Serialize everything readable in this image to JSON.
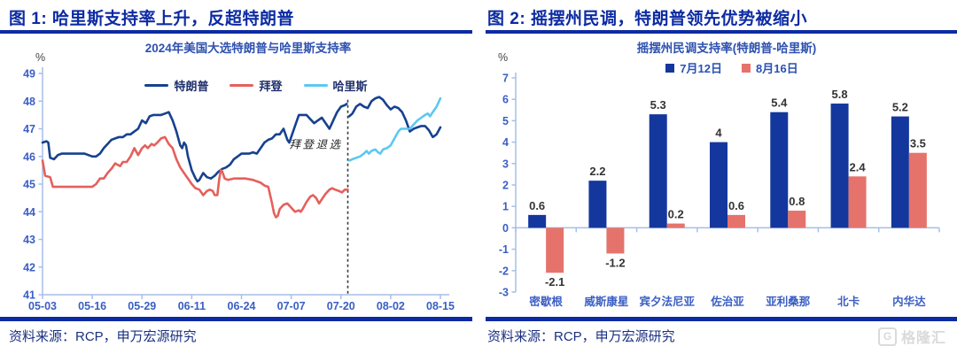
{
  "colors": {
    "accent_navy": "#0C2BA3",
    "axis_line": "#A6BEE8",
    "tick_text": "#3A5EC4",
    "value_label": "#333333",
    "annotation_text": "#222222",
    "event_line": "#3A3A3A",
    "source_text": "#1A3080",
    "watermark_gray": "#DADADA"
  },
  "panels": [
    {
      "figure_title": "图 1: 哈里斯支持率上升，反超特朗普",
      "source": "资料来源：RCP，申万宏源研究"
    },
    {
      "figure_title": "图 2: 摇摆州民调，特朗普领先优势被缩小",
      "source": "资料来源：RCP，申万宏源研究"
    }
  ],
  "watermark": {
    "logo_letter": "G",
    "text": "格隆汇"
  },
  "chart_data": [
    {
      "type": "line",
      "title": "2024年美国大选特朗普与哈里斯支持率",
      "unit_label": "%",
      "ylim": [
        41,
        49
      ],
      "ytick_step": 1,
      "x_range": [
        0,
        104
      ],
      "x_ticks": [
        {
          "day": 0,
          "label": "05-03"
        },
        {
          "day": 13,
          "label": "05-16"
        },
        {
          "day": 26,
          "label": "05-29"
        },
        {
          "day": 39,
          "label": "06-11"
        },
        {
          "day": 52,
          "label": "06-24"
        },
        {
          "day": 65,
          "label": "07-07"
        },
        {
          "day": 78,
          "label": "07-20"
        },
        {
          "day": 91,
          "label": "08-02"
        },
        {
          "day": 104,
          "label": "08-15"
        }
      ],
      "event_line": {
        "day": 79.8,
        "label": "拜登退选",
        "label_day": 78.4,
        "label_value": 46.3,
        "top_value": 48.05
      },
      "legend_position": "top-center",
      "grid": false,
      "series": [
        {
          "id": "trump",
          "name": "特朗普",
          "color": "#16418F",
          "points": [
            [
              0,
              46.5
            ],
            [
              1,
              46.55
            ],
            [
              1.5,
              46.5
            ],
            [
              2,
              45.95
            ],
            [
              3,
              45.9
            ],
            [
              4,
              46.05
            ],
            [
              5,
              46.1
            ],
            [
              8,
              46.1
            ],
            [
              11,
              46.1
            ],
            [
              12,
              46.05
            ],
            [
              13,
              46.0
            ],
            [
              14,
              46.0
            ],
            [
              15,
              46.1
            ],
            [
              16,
              46.3
            ],
            [
              17,
              46.45
            ],
            [
              18,
              46.6
            ],
            [
              19,
              46.65
            ],
            [
              20,
              46.7
            ],
            [
              21,
              46.7
            ],
            [
              22,
              46.8
            ],
            [
              23,
              46.8
            ],
            [
              24,
              46.9
            ],
            [
              25,
              47.0
            ],
            [
              26,
              47.3
            ],
            [
              27,
              47.2
            ],
            [
              28,
              47.45
            ],
            [
              29,
              47.5
            ],
            [
              30,
              47.5
            ],
            [
              31,
              47.5
            ],
            [
              32,
              47.55
            ],
            [
              33,
              47.6
            ],
            [
              34,
              47.3
            ],
            [
              35,
              46.9
            ],
            [
              36,
              46.4
            ],
            [
              36.5,
              46.3
            ],
            [
              37,
              46.5
            ],
            [
              37.5,
              46.4
            ],
            [
              38,
              46.0
            ],
            [
              39,
              45.5
            ],
            [
              40,
              45.2
            ],
            [
              40.5,
              45.1
            ],
            [
              41,
              45.15
            ],
            [
              42,
              45.4
            ],
            [
              43,
              45.25
            ],
            [
              44,
              45.2
            ],
            [
              45,
              45.3
            ],
            [
              46,
              45.45
            ],
            [
              47,
              45.55
            ],
            [
              48,
              45.6
            ],
            [
              49,
              45.7
            ],
            [
              50,
              45.9
            ],
            [
              51,
              46.0
            ],
            [
              52,
              46.1
            ],
            [
              54,
              46.1
            ],
            [
              55,
              46.15
            ],
            [
              56,
              46.1
            ],
            [
              57,
              46.3
            ],
            [
              58,
              46.5
            ],
            [
              59,
              46.6
            ],
            [
              60,
              46.65
            ],
            [
              61,
              46.8
            ],
            [
              62,
              46.8
            ],
            [
              62.5,
              46.9
            ],
            [
              63,
              47.0
            ],
            [
              64,
              46.6
            ],
            [
              64.5,
              46.5
            ],
            [
              65,
              46.7
            ],
            [
              66,
              47.1
            ],
            [
              67,
              47.5
            ],
            [
              68,
              47.5
            ],
            [
              69,
              47.5
            ],
            [
              70,
              47.35
            ],
            [
              71,
              47.2
            ],
            [
              72,
              47.3
            ],
            [
              73,
              47.4
            ],
            [
              74,
              47.2
            ],
            [
              75,
              47.0
            ],
            [
              76,
              47.3
            ],
            [
              77,
              47.6
            ],
            [
              78,
              47.8
            ],
            [
              79,
              47.85
            ],
            [
              79.5,
              47.9
            ],
            null,
            [
              80.2,
              47.45
            ],
            [
              81,
              47.55
            ],
            [
              82,
              47.8
            ],
            [
              83,
              47.9
            ],
            [
              84,
              47.8
            ],
            [
              85,
              47.75
            ],
            [
              86,
              48.0
            ],
            [
              87,
              48.1
            ],
            [
              88,
              48.15
            ],
            [
              89,
              48.05
            ],
            [
              90,
              47.85
            ],
            [
              91,
              47.7
            ],
            [
              92,
              47.8
            ],
            [
              93,
              47.75
            ],
            [
              94,
              47.6
            ],
            [
              95,
              47.3
            ],
            [
              96,
              46.9
            ],
            [
              97,
              47.0
            ],
            [
              98,
              47.05
            ],
            [
              99,
              47.1
            ],
            [
              100,
              47.1
            ],
            [
              101,
              46.95
            ],
            [
              102,
              46.7
            ],
            [
              103,
              46.8
            ],
            [
              104,
              47.05
            ]
          ]
        },
        {
          "id": "biden",
          "name": "拜登",
          "color": "#E4605C",
          "points": [
            [
              0,
              45.85
            ],
            [
              0.7,
              45.3
            ],
            [
              2,
              45.25
            ],
            [
              2.7,
              44.9
            ],
            [
              13,
              44.9
            ],
            [
              14,
              45.0
            ],
            [
              15,
              45.2
            ],
            [
              16,
              45.2
            ],
            [
              17,
              45.4
            ],
            [
              18,
              45.55
            ],
            [
              19,
              45.75
            ],
            [
              19.6,
              45.7
            ],
            [
              20.3,
              45.65
            ],
            [
              21,
              45.8
            ],
            [
              22,
              45.8
            ],
            [
              23,
              46.0
            ],
            [
              24,
              46.3
            ],
            [
              25,
              46.05
            ],
            [
              26,
              46.3
            ],
            [
              26.8,
              46.4
            ],
            [
              27.5,
              46.3
            ],
            [
              28.5,
              46.45
            ],
            [
              29.2,
              46.4
            ],
            [
              30,
              46.5
            ],
            [
              31,
              46.65
            ],
            [
              32,
              46.7
            ],
            [
              33,
              46.45
            ],
            [
              34,
              46.3
            ],
            [
              35,
              45.9
            ],
            [
              36,
              45.6
            ],
            [
              37,
              45.4
            ],
            [
              38,
              45.2
            ],
            [
              39,
              45.0
            ],
            [
              40,
              44.85
            ],
            [
              41,
              44.8
            ],
            [
              42,
              44.6
            ],
            [
              43,
              44.75
            ],
            [
              43.7,
              44.8
            ],
            [
              44.5,
              44.75
            ],
            [
              45,
              44.6
            ],
            [
              45.7,
              44.6
            ],
            [
              46.2,
              45.2
            ],
            [
              46.6,
              45.5
            ],
            [
              47,
              45.45
            ],
            [
              47.6,
              45.2
            ],
            [
              48.5,
              45.15
            ],
            [
              50,
              45.2
            ],
            [
              53,
              45.2
            ],
            [
              55,
              45.15
            ],
            [
              56,
              45.1
            ],
            [
              57,
              45.05
            ],
            [
              58,
              44.95
            ],
            [
              59,
              44.9
            ],
            [
              59.5,
              44.6
            ],
            [
              60,
              44.3
            ],
            [
              60.5,
              43.95
            ],
            [
              61,
              43.8
            ],
            [
              61.5,
              43.85
            ],
            [
              62,
              44.1
            ],
            [
              63,
              44.25
            ],
            [
              64,
              44.3
            ],
            [
              65,
              44.15
            ],
            [
              66,
              44.0
            ],
            [
              67,
              44.05
            ],
            [
              67.5,
              44.0
            ],
            [
              68,
              44.1
            ],
            [
              69,
              44.35
            ],
            [
              70,
              44.55
            ],
            [
              70.7,
              44.6
            ],
            [
              71.5,
              44.5
            ],
            [
              72.3,
              44.3
            ],
            [
              73,
              44.45
            ],
            [
              74,
              44.65
            ],
            [
              75,
              44.8
            ],
            [
              75.7,
              44.85
            ],
            [
              76.5,
              44.8
            ],
            [
              77.5,
              44.75
            ],
            [
              78.3,
              44.7
            ],
            [
              79,
              44.8
            ],
            [
              79.8,
              44.8
            ]
          ]
        },
        {
          "id": "harris",
          "name": "哈里斯",
          "color": "#5BC8F2",
          "points": [
            [
              80.2,
              45.85
            ],
            [
              81,
              45.9
            ],
            [
              82,
              45.95
            ],
            [
              83,
              46.0
            ],
            [
              84,
              46.1
            ],
            [
              84.7,
              46.2
            ],
            [
              85.3,
              46.1
            ],
            [
              86,
              46.2
            ],
            [
              87,
              46.25
            ],
            [
              87.7,
              46.15
            ],
            [
              88.3,
              46.1
            ],
            [
              89,
              46.25
            ],
            [
              90,
              46.3
            ],
            [
              91,
              46.4
            ],
            [
              92,
              46.65
            ],
            [
              93,
              46.9
            ],
            [
              93.7,
              47.0
            ],
            [
              95,
              47.0
            ],
            [
              96,
              47.0
            ],
            [
              97,
              47.15
            ],
            [
              98,
              47.3
            ],
            [
              99,
              47.4
            ],
            [
              100,
              47.5
            ],
            [
              100.7,
              47.55
            ],
            [
              101.3,
              47.45
            ],
            [
              102,
              47.6
            ],
            [
              103,
              47.8
            ],
            [
              104,
              48.1
            ]
          ]
        }
      ]
    },
    {
      "type": "bar",
      "title": "摇摆州民调支持率(特朗普-哈里斯)",
      "unit_label": "%",
      "ylim": [
        -3,
        7
      ],
      "ytick_step": 1,
      "legend_position": "top-center",
      "grid": false,
      "categories": [
        "密歇根",
        "威斯康星",
        "宾夕法尼亚",
        "佐治亚",
        "亚利桑那",
        "北卡",
        "内华达"
      ],
      "series": [
        {
          "id": "jul12",
          "name": "7月12日",
          "color": "#14379E",
          "values": [
            0.6,
            2.2,
            5.3,
            4,
            5.4,
            5.8,
            5.2
          ]
        },
        {
          "id": "aug16",
          "name": "8月16日",
          "color": "#E5736C",
          "values": [
            -2.1,
            -1.2,
            0.2,
            0.6,
            0.8,
            2.4,
            3.5
          ]
        }
      ]
    }
  ]
}
